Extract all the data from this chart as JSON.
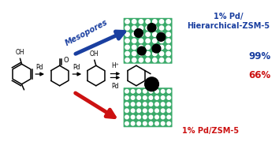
{
  "bg_color": "#ffffff",
  "blue_color": "#1a3fa0",
  "red_color": "#cc1111",
  "black_color": "#000000",
  "zeolite_color": "#3aaa6a",
  "label_hierarchical": "1% Pd/\nHierarchical-ZSM-5",
  "label_zsm5": "1% Pd/ZSM-5",
  "label_mesopores": "Mesopores",
  "label_99": "99%",
  "label_66": "66%",
  "figsize": [
    3.54,
    1.89
  ],
  "dpi": 100
}
